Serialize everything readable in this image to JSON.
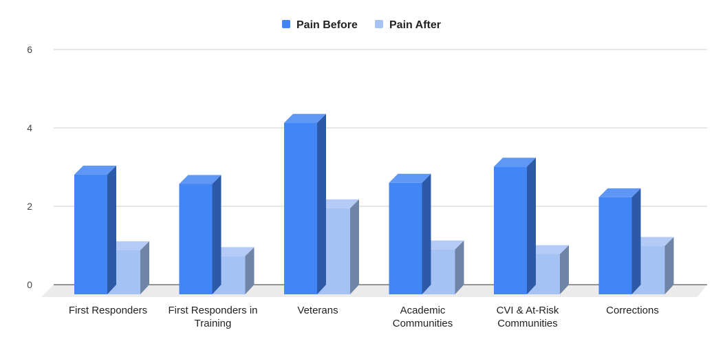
{
  "chart_data": {
    "type": "bar",
    "style": "3d-grouped",
    "categories": [
      [
        "First Responders"
      ],
      [
        "First Responders in",
        "Training"
      ],
      [
        "Veterans"
      ],
      [
        "Academic",
        "Communities"
      ],
      [
        "CVI & At-Risk",
        "Communities"
      ],
      [
        "Corrections"
      ]
    ],
    "series": [
      {
        "name": "Pain Before",
        "color": "#4285f4",
        "values": [
          2.81,
          2.57,
          4.13,
          2.6,
          3.01,
          2.23
        ]
      },
      {
        "name": "Pain After",
        "color": "#a5c2f4",
        "values": [
          0.88,
          0.73,
          1.95,
          0.9,
          0.78,
          0.99
        ]
      }
    ],
    "ylim": [
      0,
      6
    ],
    "yticks": [
      0,
      2,
      4,
      6
    ],
    "grid": true,
    "legend_position": "top-center"
  }
}
